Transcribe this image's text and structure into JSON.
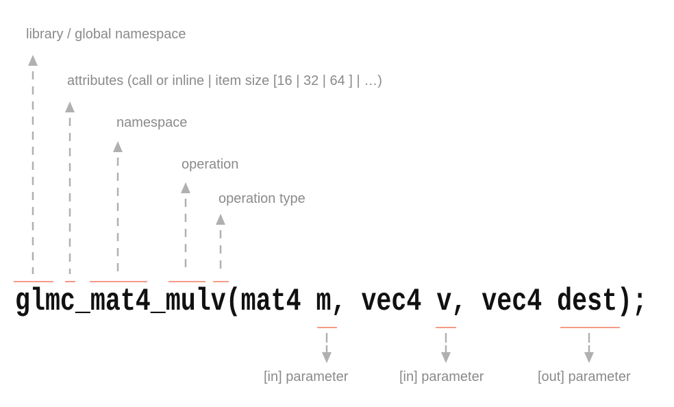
{
  "code": "glmc_mat4_mulv(mat4 m, vec4 v, vec4 dest);",
  "labels_up": {
    "library": "library / global namespace",
    "attributes": "attributes (call or inline | item size [16 | 32 | 64 ] | …)",
    "namespace": "namespace",
    "operation": "operation",
    "operation_type": "operation type"
  },
  "labels_down": {
    "param_m": "[in] parameter",
    "param_v": "[in] parameter",
    "param_dest": "[out] parameter"
  },
  "colors": {
    "underline": "#f07860",
    "arrow": "#b0b0b0",
    "label": "#8a8a8a",
    "code": "#111111"
  }
}
